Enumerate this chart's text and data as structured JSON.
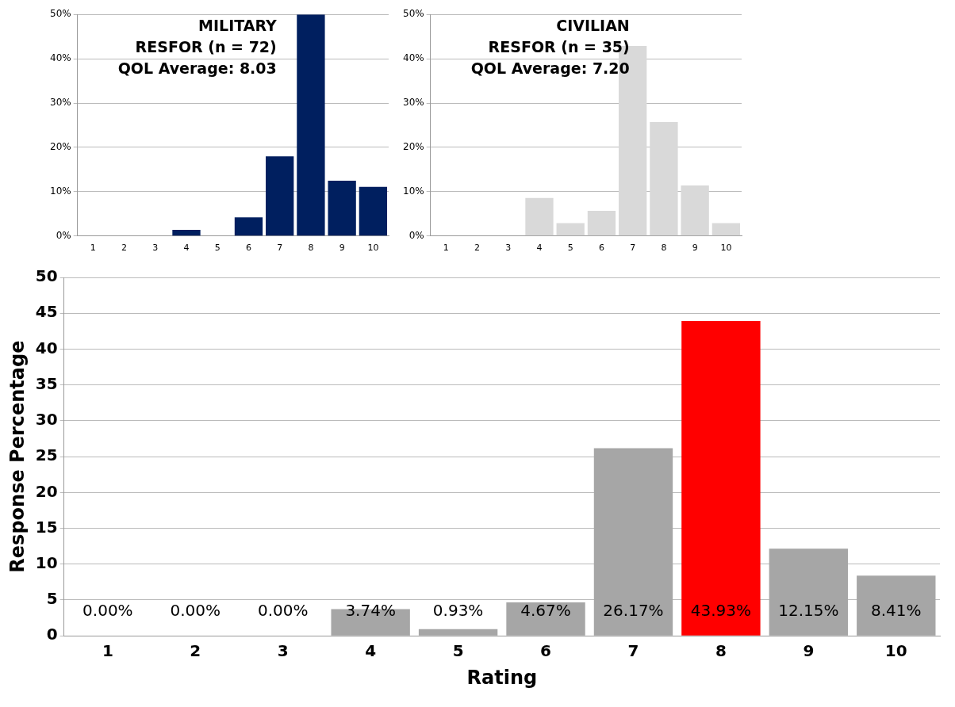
{
  "chart_data": [
    {
      "type": "bar",
      "categories": [
        "1",
        "2",
        "3",
        "4",
        "5",
        "6",
        "7",
        "8",
        "9",
        "10"
      ],
      "values": [
        0,
        0,
        0,
        1.4,
        0,
        4.2,
        18,
        50,
        12.5,
        11.1
      ],
      "color": "#001f5f",
      "ylim": [
        0,
        50
      ],
      "yticks": [
        {
          "value": 0,
          "label": "0%"
        },
        {
          "value": 10,
          "label": "10%"
        },
        {
          "value": 20,
          "label": "20%"
        },
        {
          "value": 30,
          "label": "30%"
        },
        {
          "value": 40,
          "label": "40%"
        },
        {
          "value": 50,
          "label": "50%"
        }
      ],
      "grid": "y",
      "legend": false,
      "annotations": [
        "MILITARY",
        "RESFOR (n = 72)",
        "QOL Average: 8.03"
      ]
    },
    {
      "type": "bar",
      "categories": [
        "1",
        "2",
        "3",
        "4",
        "5",
        "6",
        "7",
        "8",
        "9",
        "10"
      ],
      "values": [
        0,
        0,
        0,
        8.6,
        2.9,
        5.7,
        42.9,
        25.7,
        11.4,
        2.9
      ],
      "color": "#d9d9d9",
      "ylim": [
        0,
        50
      ],
      "yticks": [
        {
          "value": 0,
          "label": "0%"
        },
        {
          "value": 10,
          "label": "10%"
        },
        {
          "value": 20,
          "label": "20%"
        },
        {
          "value": 30,
          "label": "30%"
        },
        {
          "value": 40,
          "label": "40%"
        },
        {
          "value": 50,
          "label": "50%"
        }
      ],
      "grid": "y",
      "legend": false,
      "annotations": [
        "CIVILIAN",
        "RESFOR (n = 35)",
        "QOL Average: 7.20"
      ]
    },
    {
      "type": "bar",
      "categories": [
        "1",
        "2",
        "3",
        "4",
        "5",
        "6",
        "7",
        "8",
        "9",
        "10"
      ],
      "values": [
        0,
        0,
        0,
        3.74,
        0.93,
        4.67,
        26.17,
        43.93,
        12.15,
        8.41
      ],
      "colors": [
        "#a6a6a6",
        "#a6a6a6",
        "#a6a6a6",
        "#a6a6a6",
        "#a6a6a6",
        "#a6a6a6",
        "#a6a6a6",
        "#ff0000",
        "#a6a6a6",
        "#a6a6a6"
      ],
      "value_labels": [
        "0.00%",
        "0.00%",
        "0.00%",
        "3.74%",
        "0.93%",
        "4.67%",
        "26.17%",
        "43.93%",
        "12.15%",
        "8.41%"
      ],
      "ylim": [
        0,
        50
      ],
      "yticks": [
        0,
        5,
        10,
        15,
        20,
        25,
        30,
        35,
        40,
        45,
        50
      ],
      "grid": "y",
      "legend": false,
      "xlabel": "Rating",
      "ylabel": "Response Percentage"
    }
  ]
}
